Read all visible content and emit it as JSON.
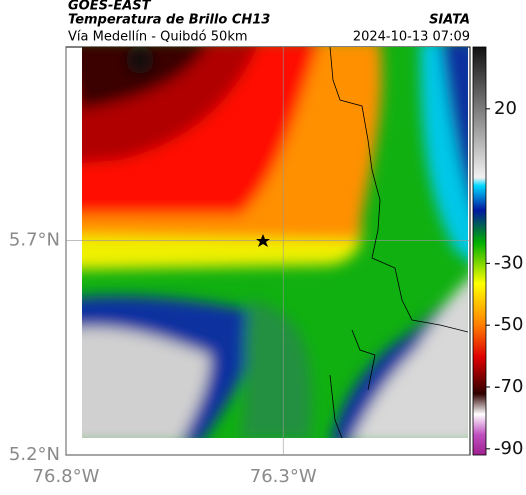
{
  "header": {
    "title": "GOES-EAST",
    "subtitle": "Temperatura de Brillo CH13",
    "source": "SIATA",
    "route": "Vía Medellín - Quibdó 50km",
    "datetime": "2024-10-13 07:09"
  },
  "map": {
    "lat_lim": [
      5.2,
      6.15
    ],
    "lon_lim": [
      -76.8,
      -75.87
    ],
    "lat_ticks": [
      {
        "value": 5.7,
        "label": "5.7°N"
      },
      {
        "value": 5.2,
        "label": "5.2°N"
      }
    ],
    "lon_ticks": [
      {
        "value": -76.8,
        "label": "76.8°W"
      },
      {
        "value": -76.3,
        "label": "76.3°W"
      }
    ]
  },
  "colorbar": {
    "lim": [
      -92,
      40
    ],
    "ticks": [
      20,
      -30,
      -50,
      -70,
      -90
    ]
  }
}
